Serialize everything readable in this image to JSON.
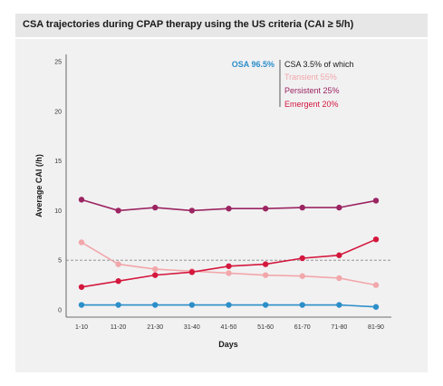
{
  "chart_data": {
    "type": "line",
    "title": "CSA trajectories during CPAP therapy using the US criteria (CAI ≥ 5/h)",
    "xlabel": "Days",
    "ylabel": "Average CAI (/h)",
    "categories": [
      "1-10",
      "11-20",
      "21-30",
      "31-40",
      "41-50",
      "51-60",
      "61-70",
      "71-80",
      "81-90"
    ],
    "ylim": [
      0,
      25
    ],
    "yticks": [
      0,
      5,
      10,
      15,
      20,
      25
    ],
    "threshold": 5,
    "grid": false,
    "legend_position": "top-right",
    "legend": {
      "osa_label": "OSA 96.5%",
      "csa_label": "CSA 3.5% of which"
    },
    "series": [
      {
        "name": "Persistent 25%",
        "color": "#9b2561",
        "values": [
          11.1,
          10.0,
          10.3,
          10.0,
          10.2,
          10.2,
          10.3,
          10.3,
          11.0
        ]
      },
      {
        "name": "Transient 55%",
        "color": "#f2a7aa",
        "values": [
          6.8,
          4.6,
          4.1,
          3.9,
          3.7,
          3.5,
          3.4,
          3.2,
          2.5
        ]
      },
      {
        "name": "Emergent 20%",
        "color": "#d4183d",
        "values": [
          2.3,
          2.9,
          3.5,
          3.8,
          4.4,
          4.6,
          5.2,
          5.5,
          7.1
        ]
      },
      {
        "name": "OSA 96.5%",
        "color": "#2c8ec9",
        "values": [
          0.5,
          0.5,
          0.5,
          0.5,
          0.5,
          0.5,
          0.5,
          0.5,
          0.3
        ]
      }
    ]
  }
}
